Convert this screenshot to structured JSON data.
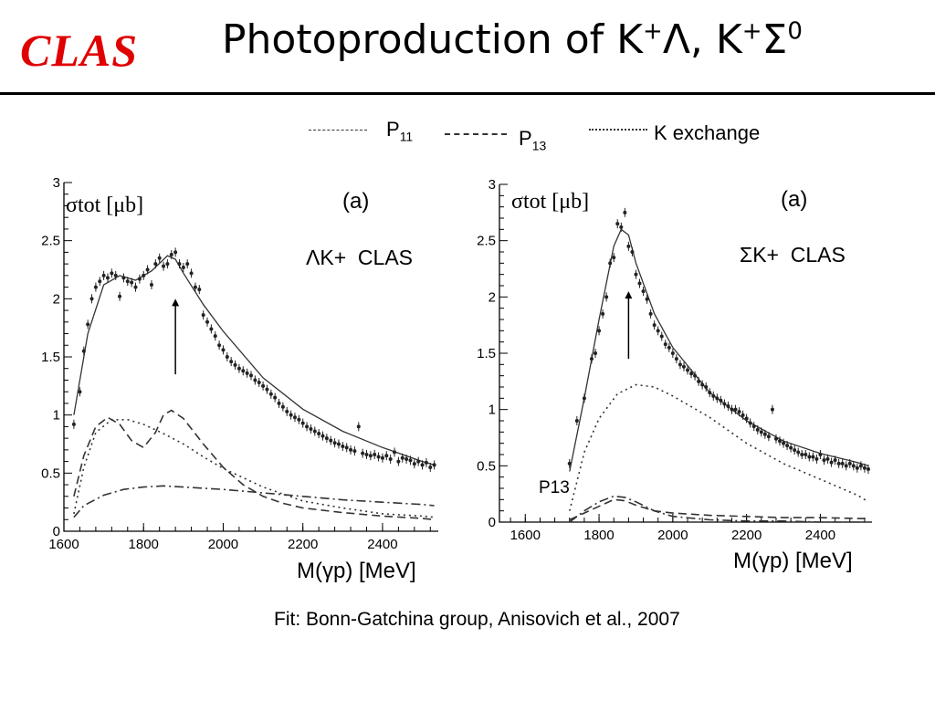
{
  "header": {
    "logo": "CLAS",
    "title_main": "Photoproduction of K",
    "title_sup1": "+",
    "title_mid": "Λ, K",
    "title_sup2": "+",
    "title_mid2": "Σ",
    "title_sup3": "0"
  },
  "legend": {
    "p11": "P",
    "p11_sub": "11",
    "p13": "P",
    "p13_sub": "13",
    "kexch": "K exchange"
  },
  "caption": "Fit: Bonn-Gatchina group, Anisovich et al.,  2007",
  "chart_data": [
    {
      "type": "scatter",
      "panel_label": "(a)",
      "ylabel": "σtot [μb]",
      "xlabel": "M(γp) [MeV]",
      "reaction": "ΛK+  CLAS",
      "xlim": [
        1600,
        2540
      ],
      "ylim": [
        0,
        3
      ],
      "xticks": [
        1600,
        1800,
        2000,
        2200,
        2400
      ],
      "yticks": [
        0,
        0.5,
        1,
        1.5,
        2,
        2.5,
        3
      ],
      "ytick_labels": [
        "0",
        "0.5",
        "1",
        "1.5",
        "2",
        "2.5",
        "3"
      ],
      "arrow": {
        "x": 1880,
        "y_from": 1.35,
        "y_to": 2.0
      },
      "points": {
        "x": [
          1625,
          1640,
          1650,
          1660,
          1670,
          1680,
          1690,
          1700,
          1710,
          1720,
          1730,
          1740,
          1750,
          1760,
          1770,
          1780,
          1790,
          1800,
          1810,
          1820,
          1830,
          1840,
          1850,
          1860,
          1870,
          1880,
          1890,
          1900,
          1910,
          1920,
          1930,
          1940,
          1950,
          1960,
          1970,
          1980,
          1990,
          2000,
          2010,
          2020,
          2030,
          2040,
          2050,
          2060,
          2070,
          2080,
          2090,
          2100,
          2110,
          2120,
          2130,
          2140,
          2150,
          2160,
          2170,
          2180,
          2190,
          2200,
          2210,
          2220,
          2230,
          2240,
          2250,
          2260,
          2270,
          2280,
          2290,
          2300,
          2310,
          2320,
          2330,
          2340,
          2350,
          2360,
          2370,
          2380,
          2390,
          2400,
          2410,
          2420,
          2430,
          2440,
          2450,
          2460,
          2470,
          2480,
          2490,
          2500,
          2510,
          2520,
          2530
        ],
        "y": [
          0.92,
          1.2,
          1.55,
          1.78,
          2.0,
          2.1,
          2.15,
          2.2,
          2.18,
          2.22,
          2.2,
          2.02,
          2.18,
          2.15,
          2.14,
          2.1,
          2.17,
          2.2,
          2.25,
          2.12,
          2.3,
          2.35,
          2.28,
          2.3,
          2.38,
          2.4,
          2.3,
          2.27,
          2.3,
          2.22,
          2.1,
          2.08,
          1.86,
          1.8,
          1.74,
          1.68,
          1.6,
          1.56,
          1.5,
          1.46,
          1.43,
          1.4,
          1.38,
          1.36,
          1.34,
          1.3,
          1.28,
          1.25,
          1.22,
          1.18,
          1.15,
          1.1,
          1.07,
          1.03,
          1.0,
          0.98,
          0.96,
          0.93,
          0.9,
          0.88,
          0.86,
          0.84,
          0.82,
          0.8,
          0.78,
          0.76,
          0.75,
          0.73,
          0.72,
          0.7,
          0.69,
          0.9,
          0.67,
          0.66,
          0.65,
          0.66,
          0.64,
          0.63,
          0.65,
          0.62,
          0.68,
          0.6,
          0.63,
          0.62,
          0.61,
          0.58,
          0.6,
          0.57,
          0.59,
          0.55,
          0.57
        ]
      },
      "series": [
        {
          "name": "fit",
          "style": "solid",
          "x": [
            1625,
            1660,
            1700,
            1740,
            1780,
            1820,
            1860,
            1880,
            1900,
            1950,
            2000,
            2100,
            2200,
            2300,
            2400,
            2500,
            2530
          ],
          "y": [
            1.0,
            1.7,
            2.12,
            2.2,
            2.16,
            2.24,
            2.37,
            2.34,
            2.22,
            1.95,
            1.72,
            1.32,
            1.05,
            0.86,
            0.72,
            0.6,
            0.57
          ]
        },
        {
          "name": "P11",
          "style": "dashdot",
          "x": [
            1625,
            1650,
            1700,
            1750,
            1800,
            1850,
            1900,
            2000,
            2100,
            2200,
            2300,
            2400,
            2500,
            2530
          ],
          "y": [
            0.12,
            0.22,
            0.31,
            0.36,
            0.38,
            0.39,
            0.38,
            0.36,
            0.33,
            0.3,
            0.27,
            0.25,
            0.23,
            0.22
          ]
        },
        {
          "name": "P13",
          "style": "dashed",
          "x": [
            1625,
            1650,
            1680,
            1710,
            1740,
            1770,
            1800,
            1830,
            1850,
            1870,
            1900,
            1950,
            2000,
            2050,
            2100,
            2150,
            2200,
            2300,
            2400,
            2500,
            2530
          ],
          "y": [
            0.3,
            0.65,
            0.9,
            0.98,
            0.92,
            0.78,
            0.72,
            0.85,
            1.0,
            1.04,
            0.97,
            0.75,
            0.55,
            0.4,
            0.3,
            0.24,
            0.2,
            0.16,
            0.13,
            0.11,
            0.1
          ]
        },
        {
          "name": "K exchange",
          "style": "dotted",
          "x": [
            1625,
            1650,
            1680,
            1720,
            1760,
            1800,
            1850,
            1900,
            1950,
            2000,
            2100,
            2200,
            2300,
            2400,
            2500,
            2530
          ],
          "y": [
            0.15,
            0.55,
            0.85,
            0.96,
            0.96,
            0.92,
            0.84,
            0.75,
            0.64,
            0.54,
            0.38,
            0.26,
            0.2,
            0.15,
            0.13,
            0.12
          ]
        }
      ]
    },
    {
      "type": "scatter",
      "panel_label": "(a)",
      "ylabel": "σtot [μb]",
      "xlabel": "M(γp) [MeV]",
      "reaction": "ΣK+  CLAS",
      "annotation": "P13",
      "xlim": [
        1530,
        2540
      ],
      "ylim": [
        0,
        3
      ],
      "xticks": [
        1600,
        1800,
        2000,
        2200,
        2400
      ],
      "yticks": [
        0,
        0.5,
        1,
        1.5,
        2,
        2.5,
        3
      ],
      "ytick_labels": [
        "0",
        "0.5",
        "1",
        "1.5",
        "2",
        "2.5",
        "3"
      ],
      "arrow": {
        "x": 1880,
        "y_from": 1.45,
        "y_to": 2.05
      },
      "points": {
        "x": [
          1720,
          1740,
          1760,
          1780,
          1790,
          1800,
          1810,
          1820,
          1830,
          1840,
          1850,
          1860,
          1870,
          1880,
          1890,
          1900,
          1910,
          1920,
          1930,
          1940,
          1950,
          1960,
          1970,
          1980,
          1990,
          2000,
          2010,
          2020,
          2030,
          2040,
          2050,
          2060,
          2070,
          2080,
          2090,
          2100,
          2110,
          2120,
          2130,
          2140,
          2150,
          2160,
          2170,
          2180,
          2190,
          2200,
          2210,
          2220,
          2230,
          2240,
          2250,
          2260,
          2270,
          2280,
          2290,
          2300,
          2310,
          2320,
          2330,
          2340,
          2350,
          2360,
          2370,
          2380,
          2390,
          2400,
          2410,
          2420,
          2430,
          2440,
          2450,
          2460,
          2470,
          2480,
          2490,
          2500,
          2510,
          2520,
          2530
        ],
        "y": [
          0.52,
          0.9,
          1.1,
          1.45,
          1.5,
          1.7,
          1.85,
          2.0,
          2.3,
          2.35,
          2.65,
          2.62,
          2.75,
          2.45,
          2.4,
          2.2,
          2.12,
          2.05,
          1.98,
          1.85,
          1.75,
          1.7,
          1.65,
          1.58,
          1.55,
          1.5,
          1.45,
          1.4,
          1.38,
          1.35,
          1.32,
          1.3,
          1.25,
          1.22,
          1.2,
          1.15,
          1.12,
          1.1,
          1.08,
          1.05,
          1.03,
          1.0,
          1.0,
          0.98,
          0.95,
          0.92,
          0.88,
          0.85,
          0.82,
          0.8,
          0.78,
          0.76,
          1.0,
          0.74,
          0.72,
          0.7,
          0.68,
          0.66,
          0.64,
          0.62,
          0.6,
          0.6,
          0.58,
          0.58,
          0.56,
          0.6,
          0.55,
          0.56,
          0.53,
          0.55,
          0.52,
          0.52,
          0.5,
          0.52,
          0.5,
          0.48,
          0.5,
          0.48,
          0.47
        ]
      },
      "series": [
        {
          "name": "fit",
          "style": "solid",
          "x": [
            1720,
            1760,
            1800,
            1840,
            1860,
            1880,
            1900,
            1950,
            2000,
            2100,
            2200,
            2300,
            2400,
            2500,
            2530
          ],
          "y": [
            0.45,
            1.1,
            1.8,
            2.45,
            2.6,
            2.55,
            2.3,
            1.85,
            1.55,
            1.15,
            0.9,
            0.72,
            0.61,
            0.53,
            0.5
          ]
        },
        {
          "name": "K exchange",
          "style": "dotted",
          "x": [
            1720,
            1760,
            1800,
            1850,
            1900,
            1950,
            2000,
            2100,
            2200,
            2300,
            2400,
            2500,
            2530
          ],
          "y": [
            0.1,
            0.62,
            0.92,
            1.14,
            1.22,
            1.2,
            1.12,
            0.93,
            0.7,
            0.52,
            0.38,
            0.24,
            0.18
          ]
        },
        {
          "name": "P11",
          "style": "dashdot",
          "x": [
            1720,
            1760,
            1800,
            1840,
            1870,
            1900,
            1950,
            2000,
            2100,
            2200,
            2300,
            2400,
            2530
          ],
          "y": [
            0.0,
            0.1,
            0.18,
            0.23,
            0.22,
            0.18,
            0.1,
            0.05,
            0.02,
            0.01,
            0.01,
            0.0,
            0.0
          ]
        },
        {
          "name": "P13",
          "style": "dashed",
          "x": [
            1720,
            1760,
            1800,
            1840,
            1870,
            1900,
            1950,
            2000,
            2100,
            2200,
            2300,
            2400,
            2530
          ],
          "y": [
            0.02,
            0.08,
            0.14,
            0.2,
            0.19,
            0.15,
            0.1,
            0.08,
            0.06,
            0.05,
            0.04,
            0.04,
            0.03
          ]
        }
      ]
    }
  ]
}
